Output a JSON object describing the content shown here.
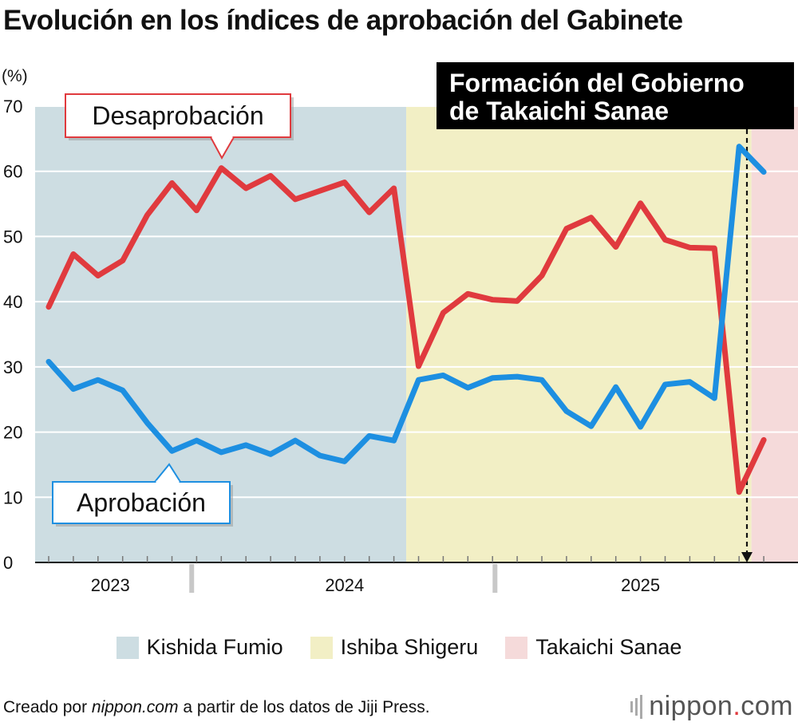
{
  "title": "Evolución en los índices de aprobación del Gabinete",
  "footer": {
    "prefix": "Creado por ",
    "site": "nippon.com",
    "suffix": " a partir de los datos de Jiji Press."
  },
  "logo": {
    "name": "nippon",
    "dot": ".",
    "tld": "com"
  },
  "chart_data": {
    "type": "line",
    "title": "Evolución en los índices de aprobación del Gabinete",
    "ylabel": "(%)",
    "ylim": [
      0,
      70
    ],
    "yticks": [
      0,
      10,
      20,
      30,
      40,
      50,
      60,
      70
    ],
    "grid": true,
    "year_labels": [
      "2023",
      "2024",
      "2025"
    ],
    "periods": [
      {
        "name": "Kishida Fumio",
        "color": "#cddde2",
        "from_index": 0,
        "to_index": 14.5
      },
      {
        "name": "Ishiba Shigeru",
        "color": "#f2efc5",
        "from_index": 14.5,
        "to_index": 28.5
      },
      {
        "name": "Takaichi Sanae",
        "color": "#f5dada",
        "from_index": 28.5,
        "to_index": 30
      }
    ],
    "series": [
      {
        "name": "Desaprobación",
        "color": "#e03a3e",
        "values": [
          39.2,
          47.3,
          44.0,
          46.3,
          53.3,
          58.2,
          54.0,
          60.5,
          57.4,
          59.3,
          55.7,
          57.0,
          58.3,
          53.7,
          57.4,
          30.1,
          38.3,
          41.2,
          40.3,
          40.1,
          44.0,
          51.2,
          52.9,
          48.4,
          55.1,
          49.5,
          48.3,
          48.2,
          10.8,
          18.8
        ]
      },
      {
        "name": "Aprobación",
        "color": "#1d8fe1",
        "values": [
          30.8,
          26.6,
          28.0,
          26.4,
          21.4,
          17.1,
          18.7,
          16.9,
          18.0,
          16.6,
          18.7,
          16.4,
          15.5,
          19.4,
          18.7,
          28.0,
          28.7,
          26.8,
          28.3,
          28.5,
          28.0,
          23.2,
          20.9,
          26.9,
          20.8,
          27.3,
          27.7,
          25.2,
          63.8,
          59.9
        ]
      }
    ],
    "annotations": {
      "desaprobacion_label": "Desaprobación",
      "aprobacion_label": "Aprobación",
      "event_label_line1": "Formación del Gobierno",
      "event_label_line2": "de Takaichi Sanae"
    },
    "legend": [
      "Kishida Fumio",
      "Ishiba Shigeru",
      "Takaichi Sanae"
    ]
  }
}
